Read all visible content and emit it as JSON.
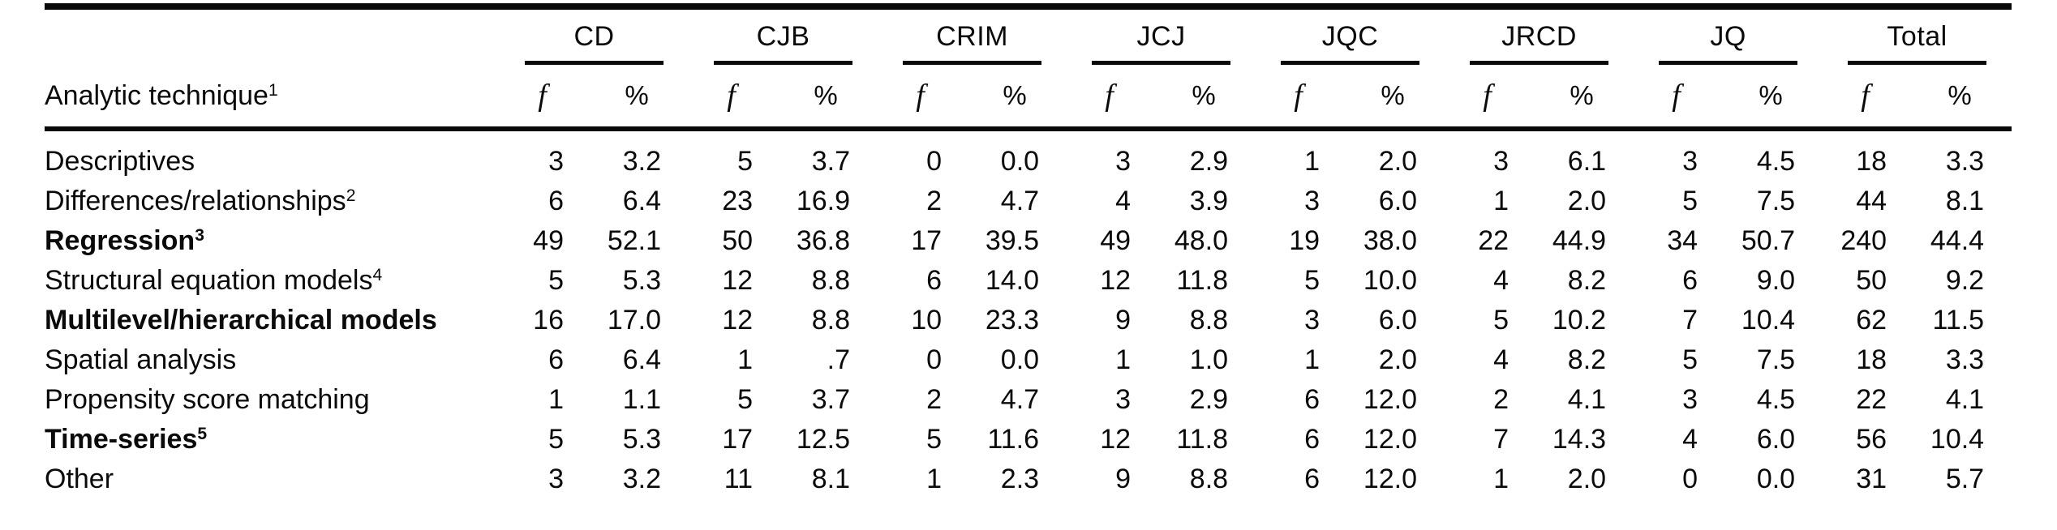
{
  "table": {
    "row_header_label": "Analytic technique",
    "row_header_sup": "1",
    "subcol_f": "f",
    "subcol_pct": "%",
    "groups": [
      {
        "label": "CD"
      },
      {
        "label": "CJB"
      },
      {
        "label": "CRIM"
      },
      {
        "label": "JCJ"
      },
      {
        "label": "JQC"
      },
      {
        "label": "JRCD"
      },
      {
        "label": "JQ"
      },
      {
        "label": "Total"
      }
    ],
    "rows": [
      {
        "label": "Descriptives",
        "sup": "",
        "bold": false,
        "values": [
          "3",
          "3.2",
          "5",
          "3.7",
          "0",
          "0.0",
          "3",
          "2.9",
          "1",
          "2.0",
          "3",
          "6.1",
          "3",
          "4.5",
          "18",
          "3.3"
        ]
      },
      {
        "label": "Differences/relationships",
        "sup": "2",
        "bold": false,
        "values": [
          "6",
          "6.4",
          "23",
          "16.9",
          "2",
          "4.7",
          "4",
          "3.9",
          "3",
          "6.0",
          "1",
          "2.0",
          "5",
          "7.5",
          "44",
          "8.1"
        ]
      },
      {
        "label": "Regression",
        "sup": "3",
        "bold": true,
        "values": [
          "49",
          "52.1",
          "50",
          "36.8",
          "17",
          "39.5",
          "49",
          "48.0",
          "19",
          "38.0",
          "22",
          "44.9",
          "34",
          "50.7",
          "240",
          "44.4"
        ]
      },
      {
        "label": "Structural equation models",
        "sup": "4",
        "bold": false,
        "values": [
          "5",
          "5.3",
          "12",
          "8.8",
          "6",
          "14.0",
          "12",
          "11.8",
          "5",
          "10.0",
          "4",
          "8.2",
          "6",
          "9.0",
          "50",
          "9.2"
        ]
      },
      {
        "label": "Multilevel/hierarchical models",
        "sup": "",
        "bold": true,
        "values": [
          "16",
          "17.0",
          "12",
          "8.8",
          "10",
          "23.3",
          "9",
          "8.8",
          "3",
          "6.0",
          "5",
          "10.2",
          "7",
          "10.4",
          "62",
          "11.5"
        ]
      },
      {
        "label": "Spatial analysis",
        "sup": "",
        "bold": false,
        "values": [
          "6",
          "6.4",
          "1",
          ".7",
          "0",
          "0.0",
          "1",
          "1.0",
          "1",
          "2.0",
          "4",
          "8.2",
          "5",
          "7.5",
          "18",
          "3.3"
        ]
      },
      {
        "label": "Propensity score matching",
        "sup": "",
        "bold": false,
        "values": [
          "1",
          "1.1",
          "5",
          "3.7",
          "2",
          "4.7",
          "3",
          "2.9",
          "6",
          "12.0",
          "2",
          "4.1",
          "3",
          "4.5",
          "22",
          "4.1"
        ]
      },
      {
        "label": "Time-series",
        "sup": "5",
        "bold": true,
        "values": [
          "5",
          "5.3",
          "17",
          "12.5",
          "5",
          "11.6",
          "12",
          "11.8",
          "6",
          "12.0",
          "7",
          "14.3",
          "4",
          "6.0",
          "56",
          "10.4"
        ]
      },
      {
        "label": "Other",
        "sup": "",
        "bold": false,
        "values": [
          "3",
          "3.2",
          "11",
          "8.1",
          "1",
          "2.3",
          "9",
          "8.8",
          "6",
          "12.0",
          "1",
          "2.0",
          "0",
          "0.0",
          "31",
          "5.7"
        ]
      }
    ]
  }
}
